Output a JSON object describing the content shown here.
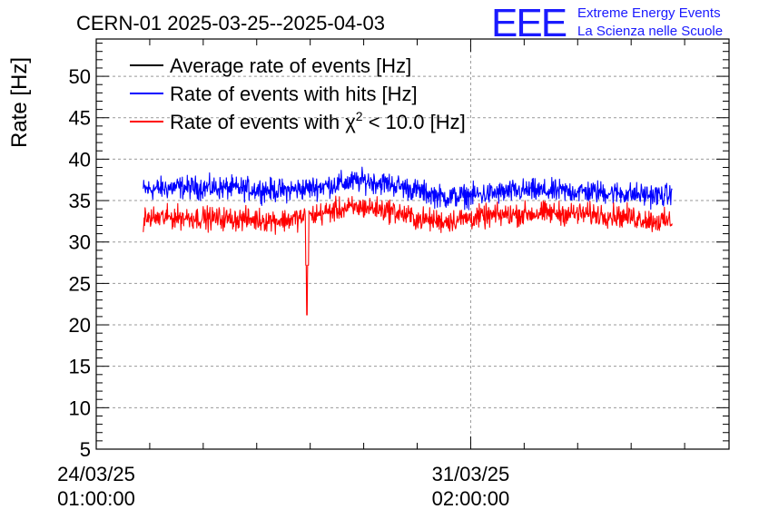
{
  "chart_data": {
    "type": "line",
    "title": "CERN-01 2025-03-25--2025-04-03",
    "xlabel": "",
    "ylabel": "Rate [Hz]",
    "ylim": [
      5,
      54.5
    ],
    "yticks": [
      5,
      10,
      15,
      20,
      25,
      30,
      35,
      40,
      45,
      50
    ],
    "xlim_days": [
      0,
      11.83
    ],
    "xticks": [
      {
        "day": 0,
        "date": "24/03/25",
        "time": "01:00:00"
      },
      {
        "day": 7,
        "date": "31/03/25",
        "time": "02:00:00"
      }
    ],
    "grid": true,
    "legend_position": "top-left",
    "series": [
      {
        "name": "Average rate of events [Hz]",
        "color": "#000000",
        "points": []
      },
      {
        "name": "Rate of events with hits [Hz]",
        "color": "#0000ff",
        "x_start": 0.88,
        "x_end": 10.77,
        "points": [
          [
            0.88,
            36.3
          ],
          [
            1.5,
            36.6
          ],
          [
            2.5,
            36.5
          ],
          [
            3.5,
            36.2
          ],
          [
            4.0,
            36.5
          ],
          [
            4.5,
            37.0
          ],
          [
            5.0,
            37.4
          ],
          [
            5.5,
            37.0
          ],
          [
            6.0,
            36.2
          ],
          [
            6.5,
            35.4
          ],
          [
            7.0,
            35.6
          ],
          [
            7.5,
            35.9
          ],
          [
            8.0,
            36.2
          ],
          [
            8.5,
            36.1
          ],
          [
            9.0,
            36.1
          ],
          [
            9.5,
            36.0
          ],
          [
            10.0,
            35.8
          ],
          [
            10.5,
            35.6
          ],
          [
            10.77,
            35.6
          ]
        ]
      },
      {
        "name": "Rate of events with χ² < 10.0 [Hz]",
        "label_prefix": "Rate of events with ",
        "label_chi": "χ",
        "label_sup": "2",
        "label_suffix": " < 10.0 [Hz]",
        "color": "#ff0000",
        "x_start": 0.88,
        "x_end": 10.77,
        "points": [
          [
            0.88,
            32.8
          ],
          [
            1.5,
            33.0
          ],
          [
            2.5,
            32.8
          ],
          [
            3.5,
            32.6
          ],
          [
            4.0,
            33.1
          ],
          [
            4.5,
            33.9
          ],
          [
            5.0,
            34.2
          ],
          [
            5.5,
            33.8
          ],
          [
            6.0,
            32.8
          ],
          [
            6.5,
            32.5
          ],
          [
            7.0,
            32.9
          ],
          [
            7.5,
            33.2
          ],
          [
            8.0,
            33.4
          ],
          [
            8.5,
            33.5
          ],
          [
            9.0,
            33.4
          ],
          [
            9.5,
            33.3
          ],
          [
            10.0,
            33.0
          ],
          [
            10.5,
            32.5
          ],
          [
            10.77,
            32.5
          ]
        ],
        "spikes": [
          {
            "day": 3.94,
            "value": 21.2
          }
        ]
      }
    ]
  },
  "logo": {
    "mark": "EEE",
    "line1": "Extreme Energy Events",
    "line2": "La Scienza nelle Scuole"
  },
  "colors": {
    "hits": "#0000ff",
    "chi2": "#ff0000",
    "average": "#000000",
    "logo": "#1a1aff"
  }
}
